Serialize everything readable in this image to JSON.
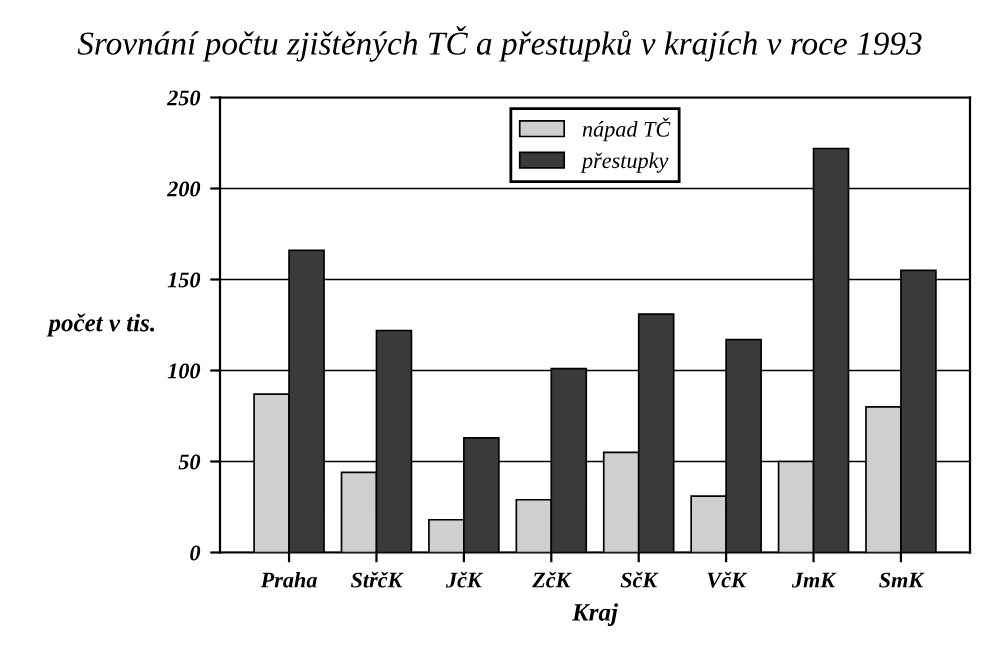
{
  "chart_data": {
    "type": "bar",
    "title": "Srovnání počtu zjištěných TČ a přestupků v krajích v roce 1993",
    "xlabel": "Kraj",
    "ylabel": "počet v tis.",
    "categories": [
      "Praha",
      "StřčK",
      "JčK",
      "ZčK",
      "SčK",
      "VčK",
      "JmK",
      "SmK"
    ],
    "series": [
      {
        "name": "nápad TČ",
        "color": "#cfcfcf",
        "values": [
          87,
          44,
          18,
          29,
          55,
          31,
          50,
          80
        ]
      },
      {
        "name": "přestupky",
        "color": "#3a3a3a",
        "values": [
          166,
          122,
          63,
          101,
          131,
          117,
          222,
          155
        ]
      }
    ],
    "ylim": [
      0,
      250
    ],
    "yticks": [
      0,
      50,
      100,
      150,
      200,
      250
    ],
    "grid": "y",
    "legend": "top"
  }
}
